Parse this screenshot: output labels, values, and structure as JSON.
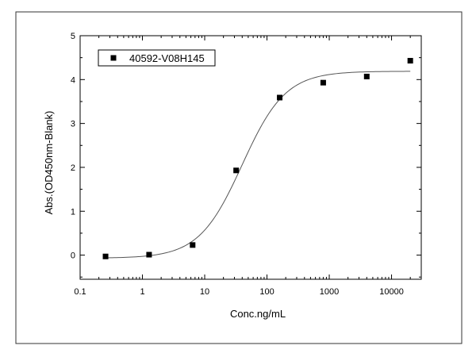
{
  "chart_data": {
    "type": "scatter",
    "xlabel": "Conc.ng/mL",
    "ylabel": "Abs.(OD450nm-Blank)",
    "x_scale": "log",
    "xlim": [
      0.1,
      30000
    ],
    "ylim": [
      -0.55,
      5
    ],
    "x_ticks": [
      0.1,
      1,
      10,
      100,
      1000,
      10000
    ],
    "x_tick_labels": [
      "0.1",
      "1",
      "10",
      "100",
      "1000",
      "10000"
    ],
    "y_ticks": [
      0,
      1,
      2,
      3,
      4,
      5
    ],
    "y_tick_labels": [
      "0",
      "1",
      "2",
      "3",
      "4",
      "5"
    ],
    "grid": false,
    "legend_position": "top-left",
    "series": [
      {
        "name": "40592-V08H145",
        "marker": "square",
        "color": "#000000",
        "x": [
          0.256,
          1.28,
          6.4,
          32,
          160,
          800,
          4000,
          20000
        ],
        "y": [
          -0.03,
          0.01,
          0.23,
          1.93,
          3.59,
          3.93,
          4.07,
          4.43
        ]
      }
    ],
    "fit_curve": {
      "model": "4PL",
      "bottom": -0.07,
      "top": 4.19,
      "ec50": 40,
      "hill": 1.25,
      "color": "#555555"
    }
  }
}
